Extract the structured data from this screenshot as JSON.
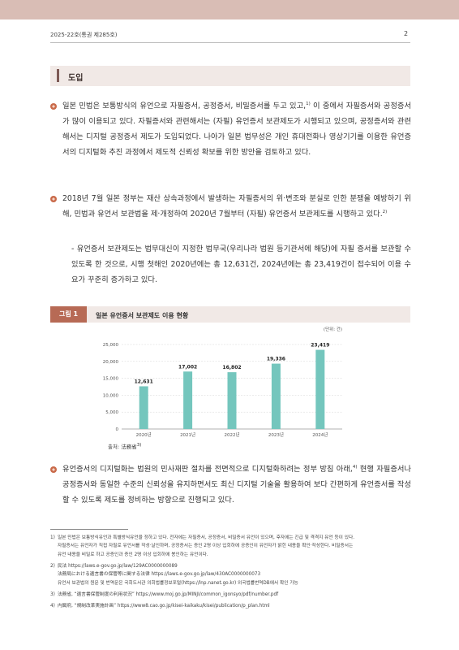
{
  "header": {
    "issue": "2025-22호(통권 제285호)",
    "page": "2"
  },
  "section": {
    "title": "도입"
  },
  "intro": {
    "p1": [
      "일본 민법은 보통방식의 유언으로 자필증서, 공정증서, 비밀증서를 두고 있고,",
      "1)",
      " 이 중에서 자필증서와 공정증서가 많이 이용되고 있다. 자필증서와 관련해서는 (자필) 유언증서 보관제도가 시행되고 있으며, 공정증서와 관련해서는 디지털 공정증서 제도가 도입되었다. 나아가 일본 법무성은 개인 휴대전화나 영상기기를 이용한 유언증서의 디지털화 추진 과정에서 제도적 신뢰성 확보를 위한 방안을 검토하고 있다."
    ],
    "p2": [
      "2018년 7월 일본 정부는 재산 상속과정에서 발생하는 자필증서의 위·변조와 분실로 인한 분쟁을 예방하기 위해, 민법과 유언서 보관법을 제·개정하여 2020년 7월부터 (자필) 유언증서 보관제도를 시행하고 있다.",
      "2)"
    ],
    "sub": "- 유언증서 보관제도는 법무대신이 지정한 법무국(우리나라 법원 등기관서에 해당)에 자필 증서를 보관할 수 있도록 한 것으로, 시행 첫해인 2020년에는 총 12,631건, 2024년에는 총 23,419건이 접수되어 이용 수요가 꾸준히 증가하고 있다.",
    "p3": [
      "유언증서의 디지털화는 법원의 민사재판 절차를 전면적으로 디지털화하려는 정부 방침 아래,",
      "4)",
      " 현행 자필증서나 공정증서와 동일한 수준의 신뢰성을 유지하면서도 최신 디지털 기술을 활용하여 보다 간편하게 유언증서를 작성할 수 있도록 제도를 정비하는 방향으로 진행되고 있다."
    ]
  },
  "figure": {
    "tag": "그림 1",
    "title": "일본 유언증서 보관제도 이용 현황",
    "source_label": "출처: 法務省",
    "source_note": "3)"
  },
  "chart_data": {
    "type": "bar",
    "unit_label": "(단위: 건)",
    "categories": [
      "2020년",
      "2021년",
      "2022년",
      "2023년",
      "2024년"
    ],
    "values": [
      12631,
      17002,
      16802,
      19336,
      23419
    ],
    "value_labels": [
      "12,631",
      "17,002",
      "16,802",
      "19,336",
      "23,419"
    ],
    "yticks": [
      0,
      5000,
      10000,
      15000,
      20000,
      25000
    ],
    "ytick_labels": [
      "0",
      "5,000",
      "10,000",
      "15,000",
      "20,000",
      "25,000"
    ],
    "ylim": [
      0,
      25000
    ],
    "grid": true,
    "bar_color": "#74c6bd"
  },
  "footnotes": [
    {
      "num": "1)",
      "lines": [
        "일본 민법은 보통방식유언과 특별방식유언을 정하고 있다. 전자에는 자필증서, 공정증서, 비밀증서 유언이 있으며, 후자에는 긴급 및 격격지 유언 등이 있다.",
        "자필증서는 유언자가 직접 자필로 유언서를 작성·날인하며, 공정증서는 증인 2명 이상 입회하에 공증인이 유언자가 밝힌 내용을 확인·작성한다. 비밀증서는",
        "유언 내용을 비밀로 하고 공증인과 증인 2명 이상 입회하에 봉인하는 유언이다."
      ]
    },
    {
      "num": "2)",
      "lines": [
        "民法 https://laws.e-gov.go.jp/law/129AC0000000089",
        "法務局における遺言書の保管等に関する法律 https://laws.e-gov.go.jp/law/430AC0000000073",
        "유언서 보관법의 원문 및 번역문은 국회도서관 의회법률정보포털(https://lnp.nanet.go.kr) 외국법률번역DB에서 확인 가능"
      ]
    },
    {
      "num": "3)",
      "lines": [
        "法務省, “遺言書保管制度の利用状況” https://www.moj.go.jp/MINJI/common_igonsyo/pdf/number.pdf"
      ]
    },
    {
      "num": "4)",
      "lines": [
        "内閣府, “規制改革実施計画” https://www8.cao.go.jp/kisei-kaikaku/kisei/publication/p_plan.html"
      ]
    }
  ],
  "colors": {
    "accent": "#b76a55",
    "band": "#d9bdb5",
    "section_bg": "#f1e9e6"
  }
}
